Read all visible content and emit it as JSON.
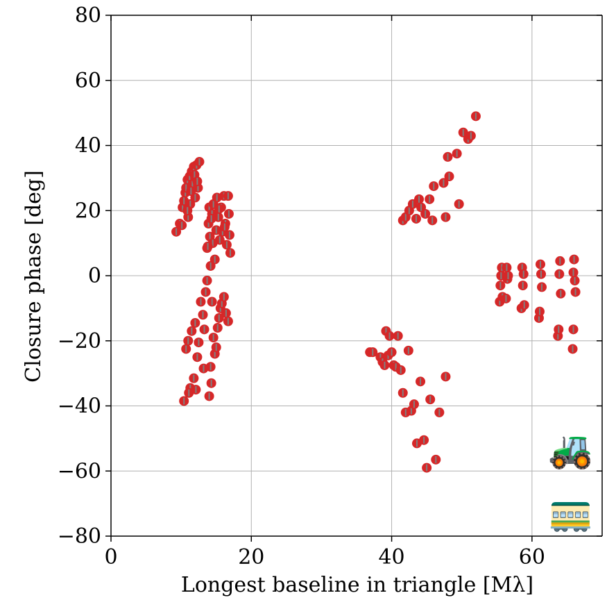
{
  "chart_data": {
    "type": "scatter",
    "xlabel": "Longest baseline in triangle [Mλ]",
    "ylabel": "Closure phase [deg]",
    "xlim": [
      0,
      70
    ],
    "ylim": [
      -80,
      80
    ],
    "xticks": [
      0,
      20,
      40,
      60
    ],
    "yticks": [
      -80,
      -60,
      -40,
      -20,
      0,
      20,
      40,
      60,
      80
    ],
    "xtick_labels": [
      "0",
      "20",
      "40",
      "60"
    ],
    "ytick_labels": [
      "−80",
      "−60",
      "−40",
      "−20",
      "0",
      "20",
      "40",
      "60",
      "80"
    ],
    "grid": true,
    "legend": "none",
    "marker_color": "#d62728",
    "errorbar_color": "#808080",
    "icons": [
      "tractor-icon",
      "tram-icon"
    ],
    "series": [
      {
        "x": [
          9.3,
          9.8,
          10.2,
          10.4,
          10.6,
          10.7,
          10.9,
          11.0,
          11.2,
          11.3,
          11.5,
          11.6,
          11.8,
          12.0,
          12.2,
          12.4,
          12.6,
          10.1,
          10.9,
          11.4,
          11.9,
          12.3,
          13.7,
          13.9,
          14.0,
          14.1,
          14.2,
          14.4,
          14.5,
          14.6,
          14.8,
          15.0,
          15.1,
          15.3,
          15.5,
          15.7,
          15.9,
          16.1,
          16.3,
          16.5,
          16.7,
          16.9,
          17.0,
          16.8,
          16.2,
          15.4,
          14.3,
          13.8,
          10.4,
          10.7,
          11.0,
          11.3,
          11.5,
          11.8,
          12.0,
          12.3,
          12.5,
          12.8,
          13.1,
          13.3,
          13.5,
          13.7,
          14.0,
          14.2,
          14.3,
          14.4,
          14.6,
          14.8,
          15.0,
          15.2,
          15.4,
          15.6,
          15.8,
          16.1,
          16.4,
          16.7,
          13.2,
          12.1,
          11.1,
          36.9,
          37.3,
          38.4,
          38.7,
          39.0,
          39.2,
          39.5,
          39.7,
          40.0,
          40.3,
          40.6,
          40.9,
          41.3,
          41.6,
          42.0,
          42.4,
          42.8,
          43.2,
          43.6,
          44.1,
          44.6,
          45.0,
          45.5,
          46.3,
          46.8,
          47.7,
          41.6,
          42.0,
          42.5,
          43.0,
          43.5,
          43.9,
          44.2,
          44.8,
          45.4,
          45.8,
          46.0,
          47.4,
          47.7,
          48.0,
          48.2,
          49.3,
          49.6,
          50.2,
          50.9,
          51.3,
          52.0,
          55.4,
          55.5,
          55.6,
          55.7,
          55.8,
          56.3,
          56.4,
          56.5,
          56.6,
          58.5,
          58.6,
          58.7,
          58.8,
          58.9,
          61.0,
          61.1,
          61.2,
          61.3,
          61.4,
          63.7,
          63.8,
          63.9,
          64.0,
          64.1,
          65.8,
          65.9,
          66.0,
          66.1,
          66.2,
          65.9
        ],
        "y": [
          13.5,
          16.0,
          21.0,
          23.0,
          25.5,
          27.0,
          29.5,
          18.0,
          30.5,
          22.0,
          32.0,
          28.0,
          33.5,
          24.0,
          34.0,
          27.0,
          35.0,
          15.5,
          20.0,
          26.0,
          31.0,
          29.0,
          8.5,
          16.0,
          21.0,
          12.0,
          3.0,
          19.0,
          10.0,
          22.0,
          5.0,
          14.0,
          24.0,
          18.0,
          11.0,
          21.0,
          13.5,
          24.5,
          16.0,
          9.5,
          24.5,
          12.5,
          7.0,
          19.0,
          15.0,
          20.5,
          17.5,
          9.0,
          -38.5,
          -22.5,
          -20.0,
          -34.5,
          -17.0,
          -31.5,
          -14.5,
          -25.0,
          -20.5,
          -8.0,
          -12.0,
          -16.5,
          -5.0,
          -1.5,
          -37.0,
          -28.0,
          -33.0,
          -8.0,
          -19.0,
          -24.0,
          -22.0,
          -16.0,
          -13.0,
          -10.0,
          -8.5,
          -6.5,
          -11.5,
          -14.0,
          -28.5,
          -35.0,
          -36.0,
          -23.5,
          -23.5,
          -25.0,
          -26.5,
          -27.5,
          -17.0,
          -24.5,
          -18.5,
          -23.5,
          -27.5,
          -28.0,
          -18.5,
          -29.0,
          -36.0,
          -42.0,
          -23.0,
          -41.5,
          -39.5,
          -51.5,
          -32.5,
          -50.5,
          -59.0,
          -38.0,
          -56.5,
          -42.0,
          -31.0,
          17.0,
          18.0,
          20.0,
          22.0,
          17.5,
          23.5,
          21.0,
          19.0,
          23.5,
          17.0,
          27.5,
          28.5,
          18.0,
          36.5,
          30.5,
          37.5,
          22.0,
          44.0,
          42.0,
          43.0,
          49.0,
          -8.0,
          -3.0,
          0.0,
          2.5,
          -6.5,
          -7.0,
          2.5,
          -1.0,
          0.0,
          -10.0,
          2.5,
          -3.0,
          0.5,
          -9.0,
          -13.0,
          -11.0,
          3.5,
          0.5,
          -3.5,
          -18.5,
          -16.5,
          0.5,
          4.5,
          -5.5,
          -22.5,
          -16.5,
          5.0,
          -1.5,
          -5.0,
          1.0
        ]
      }
    ]
  }
}
